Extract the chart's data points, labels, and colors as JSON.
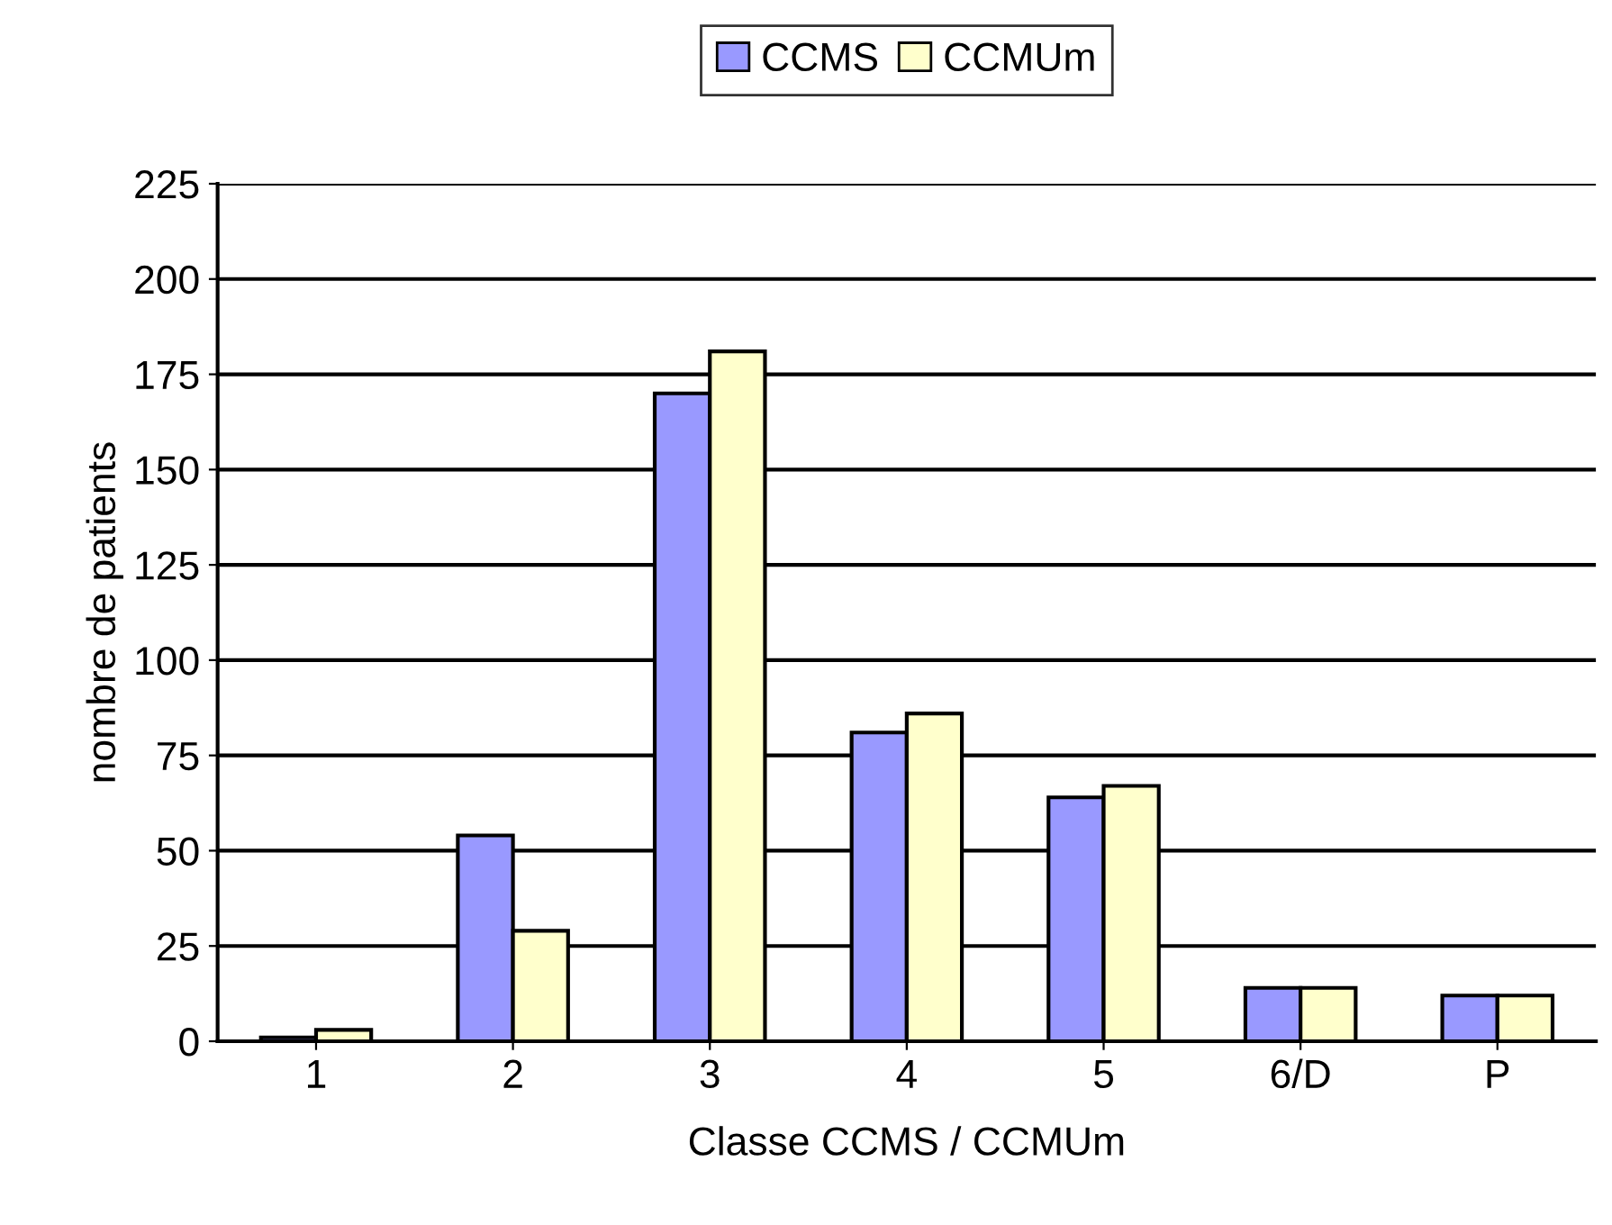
{
  "chart_data": {
    "type": "bar",
    "xlabel": "Classe CCMS / CCMUm",
    "ylabel": "nombre de patients",
    "categories": [
      "1",
      "2",
      "3",
      "4",
      "5",
      "6/D",
      "P"
    ],
    "series": [
      {
        "name": "CCMS",
        "color": "#9999ff",
        "values": [
          1,
          54,
          170,
          81,
          64,
          14,
          12
        ]
      },
      {
        "name": "CCMUm",
        "color": "#ffffcc",
        "values": [
          3,
          29,
          181,
          86,
          67,
          14,
          12
        ]
      }
    ],
    "ylim": [
      0,
      225
    ],
    "yticks": [
      0,
      25,
      50,
      75,
      100,
      125,
      150,
      175,
      200,
      225
    ],
    "grid": "y",
    "legend": "top"
  }
}
